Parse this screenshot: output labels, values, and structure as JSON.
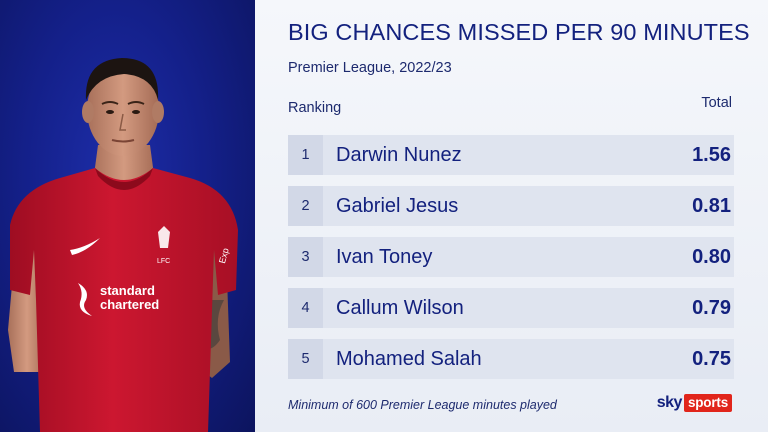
{
  "brand": {
    "sky": "sky",
    "sports": "sports",
    "sports_color": "#e1251b",
    "navy": "#13217e"
  },
  "photo": {
    "shirt_sponsor": "standard chartered",
    "shirt_crest": "LFC",
    "sleeve_text": "Exp",
    "shirt_color": "#c8102e",
    "background_color": "#14208a"
  },
  "chart_data": {
    "type": "table",
    "title": "BIG CHANCES MISSED PER 90 MINUTES",
    "subtitle": "Premier League, 2022/23",
    "columns": [
      "Ranking",
      "Total"
    ],
    "rows": [
      {
        "rank": "1",
        "name": "Darwin Nunez",
        "value": "1.56"
      },
      {
        "rank": "2",
        "name": "Gabriel Jesus",
        "value": "0.81"
      },
      {
        "rank": "3",
        "name": "Ivan Toney",
        "value": "0.80"
      },
      {
        "rank": "4",
        "name": "Callum Wilson",
        "value": "0.79"
      },
      {
        "rank": "5",
        "name": "Mohamed Salah",
        "value": "0.75"
      }
    ],
    "footnote": "Minimum of 600 Premier League minutes played"
  }
}
